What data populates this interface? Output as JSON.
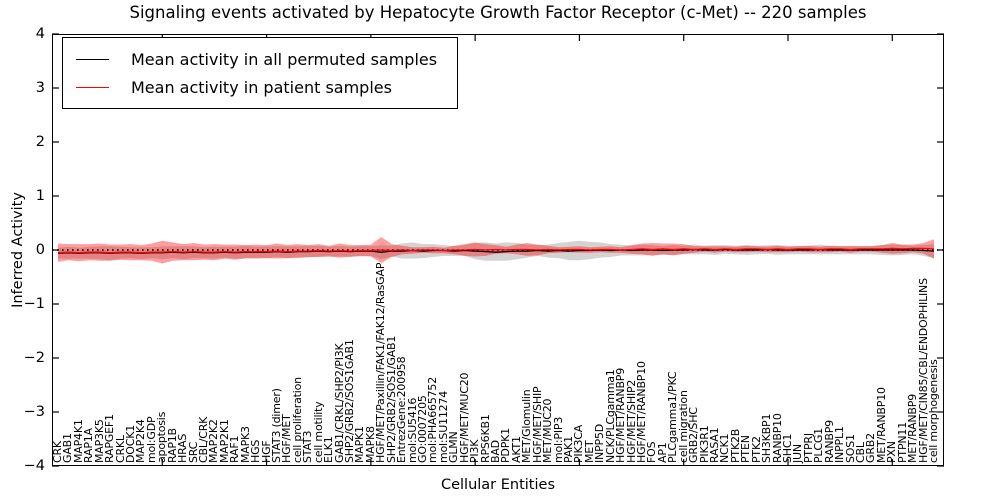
{
  "chart_data": {
    "type": "line",
    "title": "Signaling events activated by Hepatocyte Growth Factor Receptor (c-Met) -- 220 samples",
    "xlabel": "Cellular Entities",
    "ylabel": "Inferred Activity",
    "ylim": [
      -4,
      4
    ],
    "y_ticks": [
      4,
      3,
      2,
      1,
      0,
      -1,
      -2,
      -3,
      -4
    ],
    "x_major_tick_positions": [
      10,
      20,
      30,
      40,
      50,
      60,
      70,
      80
    ],
    "grid": false,
    "legend_position": "upper left",
    "zero_line": {
      "y": 0,
      "style": "dotted",
      "color": "#000000"
    },
    "categories": [
      "CRK",
      "GAB1",
      "MAP4K1",
      "RAP1A",
      "MAP3K5",
      "RAPGEF1",
      "CRKL",
      "DOCK1",
      "MAP2K4",
      "mol:GDP",
      "apoptosis",
      "RAP1B",
      "HRAS",
      "SRC",
      "CBL/CRK",
      "MAP2K2",
      "MAP2K1",
      "RAF1",
      "MAPK3",
      "HGS",
      "HGF",
      "STAT3 (dimer)",
      "HGF/MET",
      "cell proliferation",
      "STAT3",
      "cell motility",
      "ELK1",
      "GAB1/CRKL/SHP2/PI3K",
      "SHP2/GRB2/SOS1GAB1",
      "MAPK1",
      "MAPK8",
      "HGF/MET/Paxillin/FAK1/FAK12/RasGAP",
      "SHP2/GRB2/SOS1/GAB1",
      "EntrezGene:200958",
      "mol:SU5416",
      "GO:0007205",
      "mol:PHA665752",
      "mol:SU11274",
      "GLMN",
      "HGF/MET/MUC20",
      "PI3K",
      "RPS6KB1",
      "BAD",
      "PDPK1",
      "AKT1",
      "MET/Glomulin",
      "HGF/MET/SHIP",
      "MET/MUC20",
      "mol:PIP3",
      "PAK1",
      "PIK3CA",
      "MET",
      "INPP5D",
      "NCK/PLCgamma1",
      "HGF/MET/RANBP9",
      "HGF/MET/SHIP2",
      "HGF/MET/RANBP10",
      "FOS",
      "AP1",
      "PLCgamma1/PKC",
      "cell migration",
      "GRB2/SHC",
      "PIK3R1",
      "RASA1",
      "NCK1",
      "PTK2B",
      "PTEN",
      "PTK2",
      "SH3KBP1",
      "RANBP10",
      "SHC1",
      "JUN",
      "PTPRJ",
      "PLCG1",
      "RANBP9",
      "INPPL1",
      "SOS1",
      "CBL",
      "GRB2",
      "MET/RANBP10",
      "PXN",
      "PTPN11",
      "MET/RANBP9",
      "HGF/MET/CIN85/CBL/ENDOPHILINS",
      "cell morphogenesis"
    ],
    "series": [
      {
        "name": "Mean activity in all permuted samples",
        "color": "#000000",
        "band_fill": "#808080",
        "band_alpha": 0.35,
        "mean": [
          -0.06,
          -0.05,
          -0.06,
          -0.05,
          -0.05,
          -0.06,
          -0.05,
          -0.05,
          -0.06,
          -0.05,
          -0.05,
          -0.04,
          -0.05,
          -0.04,
          -0.05,
          -0.05,
          -0.04,
          -0.05,
          -0.04,
          -0.04,
          -0.04,
          -0.03,
          -0.04,
          -0.03,
          -0.03,
          -0.02,
          -0.03,
          -0.02,
          -0.03,
          -0.02,
          -0.02,
          -0.04,
          -0.02,
          -0.02,
          -0.01,
          -0.02,
          -0.01,
          -0.01,
          -0.02,
          -0.01,
          -0.02,
          -0.03,
          -0.04,
          -0.03,
          -0.02,
          -0.02,
          -0.01,
          -0.02,
          -0.01,
          -0.02,
          -0.01,
          -0.01,
          0.0,
          -0.01,
          0.0,
          -0.01,
          0.0,
          0.0,
          -0.01,
          0.0,
          0.0,
          0.01,
          0.0,
          0.0,
          0.01,
          0.0,
          0.0,
          0.0,
          0.01,
          0.0,
          0.0,
          0.0,
          0.0,
          0.01,
          0.0,
          0.0,
          0.0,
          0.0,
          0.0,
          0.0,
          0.0,
          0.0,
          0.0,
          -0.01,
          -0.02
        ],
        "band_halfwidth": [
          0.1,
          0.11,
          0.1,
          0.11,
          0.12,
          0.13,
          0.11,
          0.1,
          0.11,
          0.1,
          0.12,
          0.11,
          0.12,
          0.11,
          0.1,
          0.11,
          0.1,
          0.11,
          0.12,
          0.1,
          0.11,
          0.1,
          0.11,
          0.1,
          0.11,
          0.1,
          0.09,
          0.1,
          0.09,
          0.1,
          0.09,
          0.13,
          0.1,
          0.14,
          0.15,
          0.13,
          0.12,
          0.1,
          0.09,
          0.1,
          0.15,
          0.17,
          0.16,
          0.17,
          0.15,
          0.12,
          0.1,
          0.12,
          0.14,
          0.17,
          0.18,
          0.16,
          0.14,
          0.12,
          0.1,
          0.09,
          0.1,
          0.09,
          0.08,
          0.09,
          0.08,
          0.09,
          0.08,
          0.09,
          0.08,
          0.08,
          0.09,
          0.08,
          0.08,
          0.09,
          0.08,
          0.08,
          0.08,
          0.09,
          0.08,
          0.08,
          0.08,
          0.08,
          0.08,
          0.09,
          0.1,
          0.09,
          0.08,
          0.1,
          0.13
        ]
      },
      {
        "name": "Mean activity in patient samples",
        "color": "#ff0000",
        "band_fill": "#ff0000",
        "band_alpha": 0.38,
        "mean": [
          -0.05,
          -0.04,
          -0.05,
          -0.04,
          -0.04,
          -0.05,
          -0.04,
          -0.04,
          -0.05,
          -0.04,
          -0.04,
          -0.03,
          -0.04,
          -0.03,
          -0.04,
          -0.04,
          -0.03,
          -0.04,
          -0.03,
          -0.03,
          -0.03,
          -0.02,
          -0.03,
          -0.02,
          -0.02,
          -0.01,
          -0.02,
          -0.01,
          -0.02,
          -0.01,
          -0.01,
          0.0,
          -0.01,
          0.0,
          -0.01,
          0.0,
          0.0,
          -0.01,
          0.0,
          0.0,
          0.01,
          0.0,
          0.01,
          0.0,
          0.01,
          0.01,
          0.0,
          0.01,
          0.0,
          0.01,
          0.01,
          0.0,
          0.01,
          0.01,
          0.0,
          0.01,
          0.02,
          0.01,
          0.02,
          0.01,
          0.02,
          0.01,
          0.02,
          0.01,
          0.02,
          0.01,
          0.02,
          0.02,
          0.01,
          0.02,
          0.01,
          0.02,
          0.02,
          0.01,
          0.02,
          0.02,
          0.01,
          0.02,
          0.02,
          0.02,
          0.03,
          0.02,
          0.03,
          0.03,
          0.02
        ],
        "band_halfwidth": [
          0.17,
          0.15,
          0.16,
          0.15,
          0.16,
          0.15,
          0.14,
          0.15,
          0.14,
          0.16,
          0.21,
          0.17,
          0.15,
          0.16,
          0.14,
          0.15,
          0.13,
          0.14,
          0.12,
          0.13,
          0.12,
          0.14,
          0.12,
          0.13,
          0.11,
          0.12,
          0.1,
          0.13,
          0.11,
          0.1,
          0.11,
          0.24,
          0.12,
          0.08,
          0.06,
          0.05,
          0.06,
          0.05,
          0.08,
          0.11,
          0.13,
          0.11,
          0.08,
          0.06,
          0.09,
          0.12,
          0.1,
          0.07,
          0.05,
          0.05,
          0.06,
          0.05,
          0.05,
          0.06,
          0.05,
          0.08,
          0.1,
          0.12,
          0.1,
          0.11,
          0.09,
          0.06,
          0.05,
          0.06,
          0.05,
          0.05,
          0.06,
          0.05,
          0.05,
          0.06,
          0.05,
          0.05,
          0.06,
          0.05,
          0.06,
          0.05,
          0.06,
          0.05,
          0.05,
          0.07,
          0.1,
          0.08,
          0.07,
          0.1,
          0.18
        ]
      }
    ]
  }
}
